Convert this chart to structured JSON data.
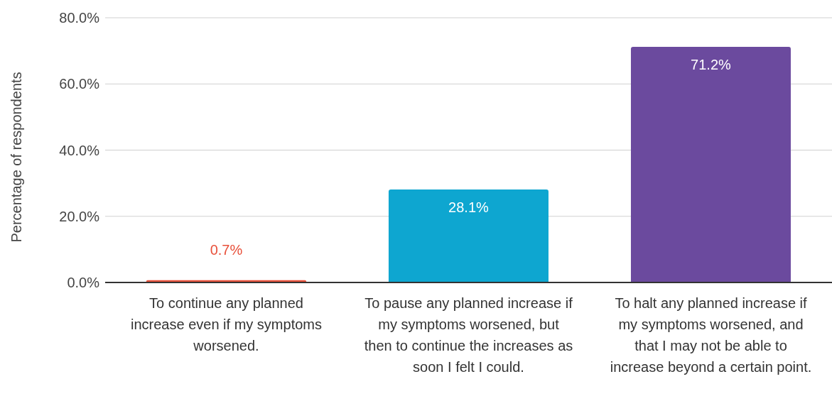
{
  "chart_data": {
    "type": "bar",
    "ylabel": "Percentage of respondents",
    "categories": [
      "To continue any planned increase even if my symptoms worsened.",
      "To pause any planned increase if my symptoms worsened, but then to continue the increases as soon I felt I could.",
      "To halt any planned increase if my symptoms worsened, and that I may not be able to increase beyond a certain point."
    ],
    "values": [
      0.7,
      28.1,
      71.2
    ],
    "colors": [
      "#e8503a",
      "#0ea6d0",
      "#6b4a9e"
    ],
    "value_labels": [
      "0.7%",
      "28.1%",
      "71.2%"
    ],
    "ylim": [
      0,
      80
    ],
    "yticks": [
      {
        "value": 0,
        "label": "0.0%"
      },
      {
        "value": 20,
        "label": "20.0%"
      },
      {
        "value": 40,
        "label": "40.0%"
      },
      {
        "value": 60,
        "label": "60.0%"
      },
      {
        "value": 80,
        "label": "80.0%"
      }
    ],
    "grid": "y",
    "legend": false
  }
}
